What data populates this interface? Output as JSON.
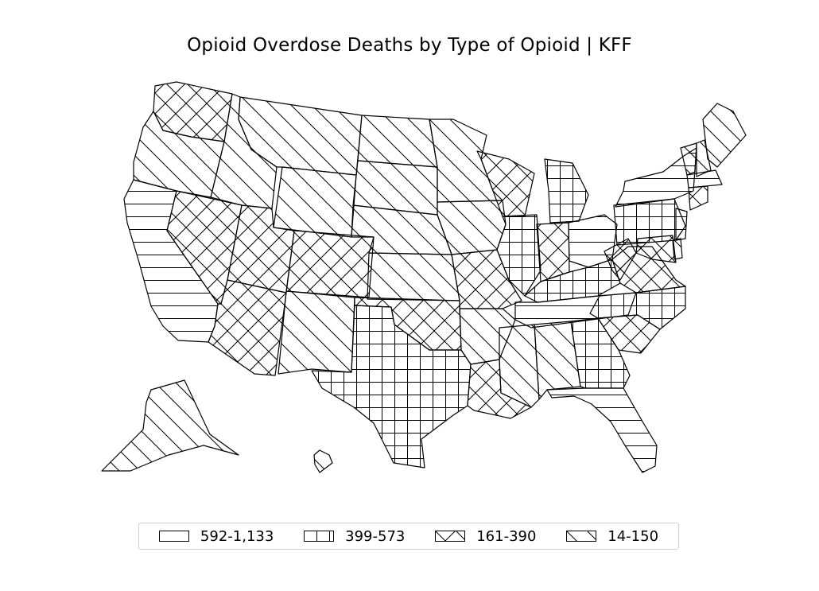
{
  "title": "Opioid Overdose Deaths by Type of Opioid | KFF",
  "legend": [
    {
      "label": "592-1,133",
      "pattern": "horizontal"
    },
    {
      "label": "399-573",
      "pattern": "grid"
    },
    {
      "label": "161-390",
      "pattern": "crosshatch"
    },
    {
      "label": "14-150",
      "pattern": "diagonal"
    }
  ],
  "states": [
    {
      "code": "WA",
      "category": "161-390"
    },
    {
      "code": "OR",
      "category": "14-150"
    },
    {
      "code": "CA",
      "category": "592-1,133"
    },
    {
      "code": "NV",
      "category": "161-390"
    },
    {
      "code": "ID",
      "category": "14-150"
    },
    {
      "code": "MT",
      "category": "14-150"
    },
    {
      "code": "WY",
      "category": "14-150"
    },
    {
      "code": "UT",
      "category": "161-390"
    },
    {
      "code": "CO",
      "category": "161-390"
    },
    {
      "code": "AZ",
      "category": "161-390"
    },
    {
      "code": "NM",
      "category": "14-150"
    },
    {
      "code": "ND",
      "category": "14-150"
    },
    {
      "code": "SD",
      "category": "14-150"
    },
    {
      "code": "NE",
      "category": "14-150"
    },
    {
      "code": "KS",
      "category": "14-150"
    },
    {
      "code": "OK",
      "category": "161-390"
    },
    {
      "code": "TX",
      "category": "399-573"
    },
    {
      "code": "MN",
      "category": "14-150"
    },
    {
      "code": "IA",
      "category": "14-150"
    },
    {
      "code": "MO",
      "category": "161-390"
    },
    {
      "code": "AR",
      "category": "14-150"
    },
    {
      "code": "LA",
      "category": "161-390"
    },
    {
      "code": "WI",
      "category": "161-390"
    },
    {
      "code": "IL",
      "category": "399-573"
    },
    {
      "code": "MI",
      "category": "399-573"
    },
    {
      "code": "IN",
      "category": "161-390"
    },
    {
      "code": "OH",
      "category": "592-1,133"
    },
    {
      "code": "KY",
      "category": "399-573"
    },
    {
      "code": "TN",
      "category": "592-1,133"
    },
    {
      "code": "MS",
      "category": "14-150"
    },
    {
      "code": "AL",
      "category": "14-150"
    },
    {
      "code": "GA",
      "category": "399-573"
    },
    {
      "code": "FL",
      "category": "592-1,133"
    },
    {
      "code": "SC",
      "category": "161-390"
    },
    {
      "code": "NC",
      "category": "399-573"
    },
    {
      "code": "VA",
      "category": "161-390"
    },
    {
      "code": "WV",
      "category": "161-390"
    },
    {
      "code": "PA",
      "category": "399-573"
    },
    {
      "code": "NY",
      "category": "592-1,133"
    },
    {
      "code": "VT",
      "category": "14-150"
    },
    {
      "code": "NH",
      "category": "14-150"
    },
    {
      "code": "ME",
      "category": "14-150"
    },
    {
      "code": "MA",
      "category": "592-1,133"
    },
    {
      "code": "CT",
      "category": "161-390"
    },
    {
      "code": "NJ",
      "category": "592-1,133"
    },
    {
      "code": "DE",
      "category": "14-150"
    },
    {
      "code": "MD",
      "category": "161-390"
    },
    {
      "code": "AK",
      "category": "14-150"
    },
    {
      "code": "HI",
      "category": "14-150"
    }
  ]
}
